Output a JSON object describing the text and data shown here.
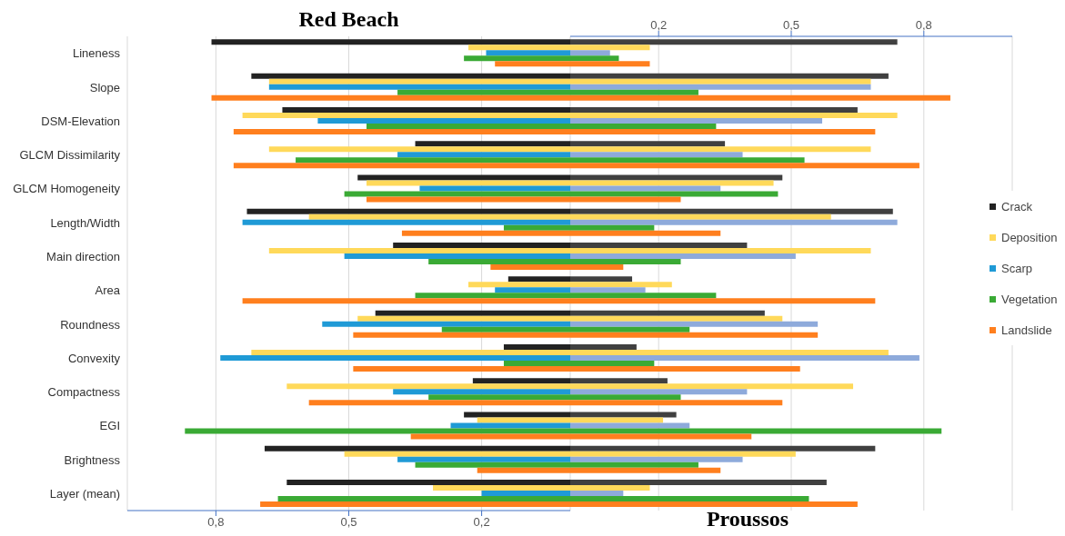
{
  "chart_data": [
    {
      "type": "bar",
      "orientation": "horizontal",
      "title": "Red Beach",
      "categories": [
        "Lineness",
        "Slope",
        "DSM-Elevation",
        "GLCM Dissimilarity",
        "GLCM Homogeneity",
        "Length/Width",
        "Main direction",
        "Area",
        "Roundness",
        "Convexity",
        "Compactness",
        "EGI",
        "Brightness",
        "Layer (mean)"
      ],
      "series": [
        {
          "name": "Crack",
          "color": "#222222",
          "values": [
            0.81,
            0.72,
            0.65,
            0.35,
            0.48,
            0.73,
            0.4,
            0.14,
            0.44,
            0.15,
            0.22,
            0.24,
            0.69,
            0.64
          ]
        },
        {
          "name": "Deposition",
          "color": "#ffd95a",
          "values": [
            0.23,
            0.68,
            0.74,
            0.68,
            0.46,
            0.59,
            0.68,
            0.23,
            0.48,
            0.72,
            0.64,
            0.21,
            0.51,
            0.31
          ]
        },
        {
          "name": "Scarp",
          "color": "#1f9ad6",
          "values": [
            0.19,
            0.68,
            0.57,
            0.39,
            0.34,
            0.74,
            0.51,
            0.17,
            0.56,
            0.79,
            0.4,
            0.27,
            0.39,
            0.2
          ]
        },
        {
          "name": "Vegetation",
          "color": "#3aaa35",
          "values": [
            0.24,
            0.39,
            0.46,
            0.62,
            0.51,
            0.15,
            0.32,
            0.35,
            0.29,
            0.15,
            0.32,
            0.87,
            0.35,
            0.66
          ]
        },
        {
          "name": "Landslide",
          "color": "#ff7f1e",
          "values": [
            0.17,
            0.81,
            0.76,
            0.76,
            0.46,
            0.38,
            0.18,
            0.74,
            0.49,
            0.49,
            0.59,
            0.36,
            0.21,
            0.7
          ]
        }
      ],
      "xlim": [
        1,
        0
      ],
      "xticks": [
        {
          "value": 0.8,
          "label": "0,8"
        },
        {
          "value": 0.5,
          "label": "0,5"
        },
        {
          "value": 0.2,
          "label": "0,2"
        }
      ],
      "grid": "x",
      "legend": "right"
    },
    {
      "type": "bar",
      "orientation": "horizontal",
      "title": "Proussos",
      "categories": [
        null,
        null,
        null,
        null,
        null,
        null,
        null,
        null,
        null,
        null,
        null,
        null,
        null,
        null
      ],
      "series": [
        {
          "color": "#404040",
          "values": [
            0.74,
            0.72,
            0.65,
            0.35,
            0.48,
            0.73,
            0.4,
            0.14,
            0.44,
            0.15,
            0.22,
            0.24,
            0.69,
            0.58
          ]
        },
        {
          "color": "#ffd95a",
          "values": [
            0.18,
            0.68,
            0.74,
            0.68,
            0.46,
            0.59,
            0.68,
            0.23,
            0.48,
            0.72,
            0.64,
            0.21,
            0.51,
            0.18
          ]
        },
        {
          "color": "#8eaadb",
          "values": [
            0.09,
            0.68,
            0.57,
            0.39,
            0.34,
            0.74,
            0.51,
            0.17,
            0.56,
            0.79,
            0.4,
            0.27,
            0.39,
            0.12
          ]
        },
        {
          "color": "#3aaa35",
          "values": [
            0.11,
            0.29,
            0.33,
            0.53,
            0.47,
            0.19,
            0.25,
            0.33,
            0.27,
            0.19,
            0.25,
            0.84,
            0.29,
            0.54
          ]
        },
        {
          "color": "#ff7f1e",
          "values": [
            0.18,
            0.86,
            0.69,
            0.79,
            0.25,
            0.34,
            0.12,
            0.69,
            0.56,
            0.52,
            0.48,
            0.41,
            0.34,
            0.65
          ]
        }
      ],
      "xlim": [
        0,
        1
      ],
      "xticks": [
        {
          "value": 0.2,
          "label": "0,2"
        },
        {
          "value": 0.5,
          "label": "0,5"
        },
        {
          "value": 0.8,
          "label": "0,8"
        }
      ],
      "grid": "x",
      "tick_labels": "x"
    }
  ]
}
